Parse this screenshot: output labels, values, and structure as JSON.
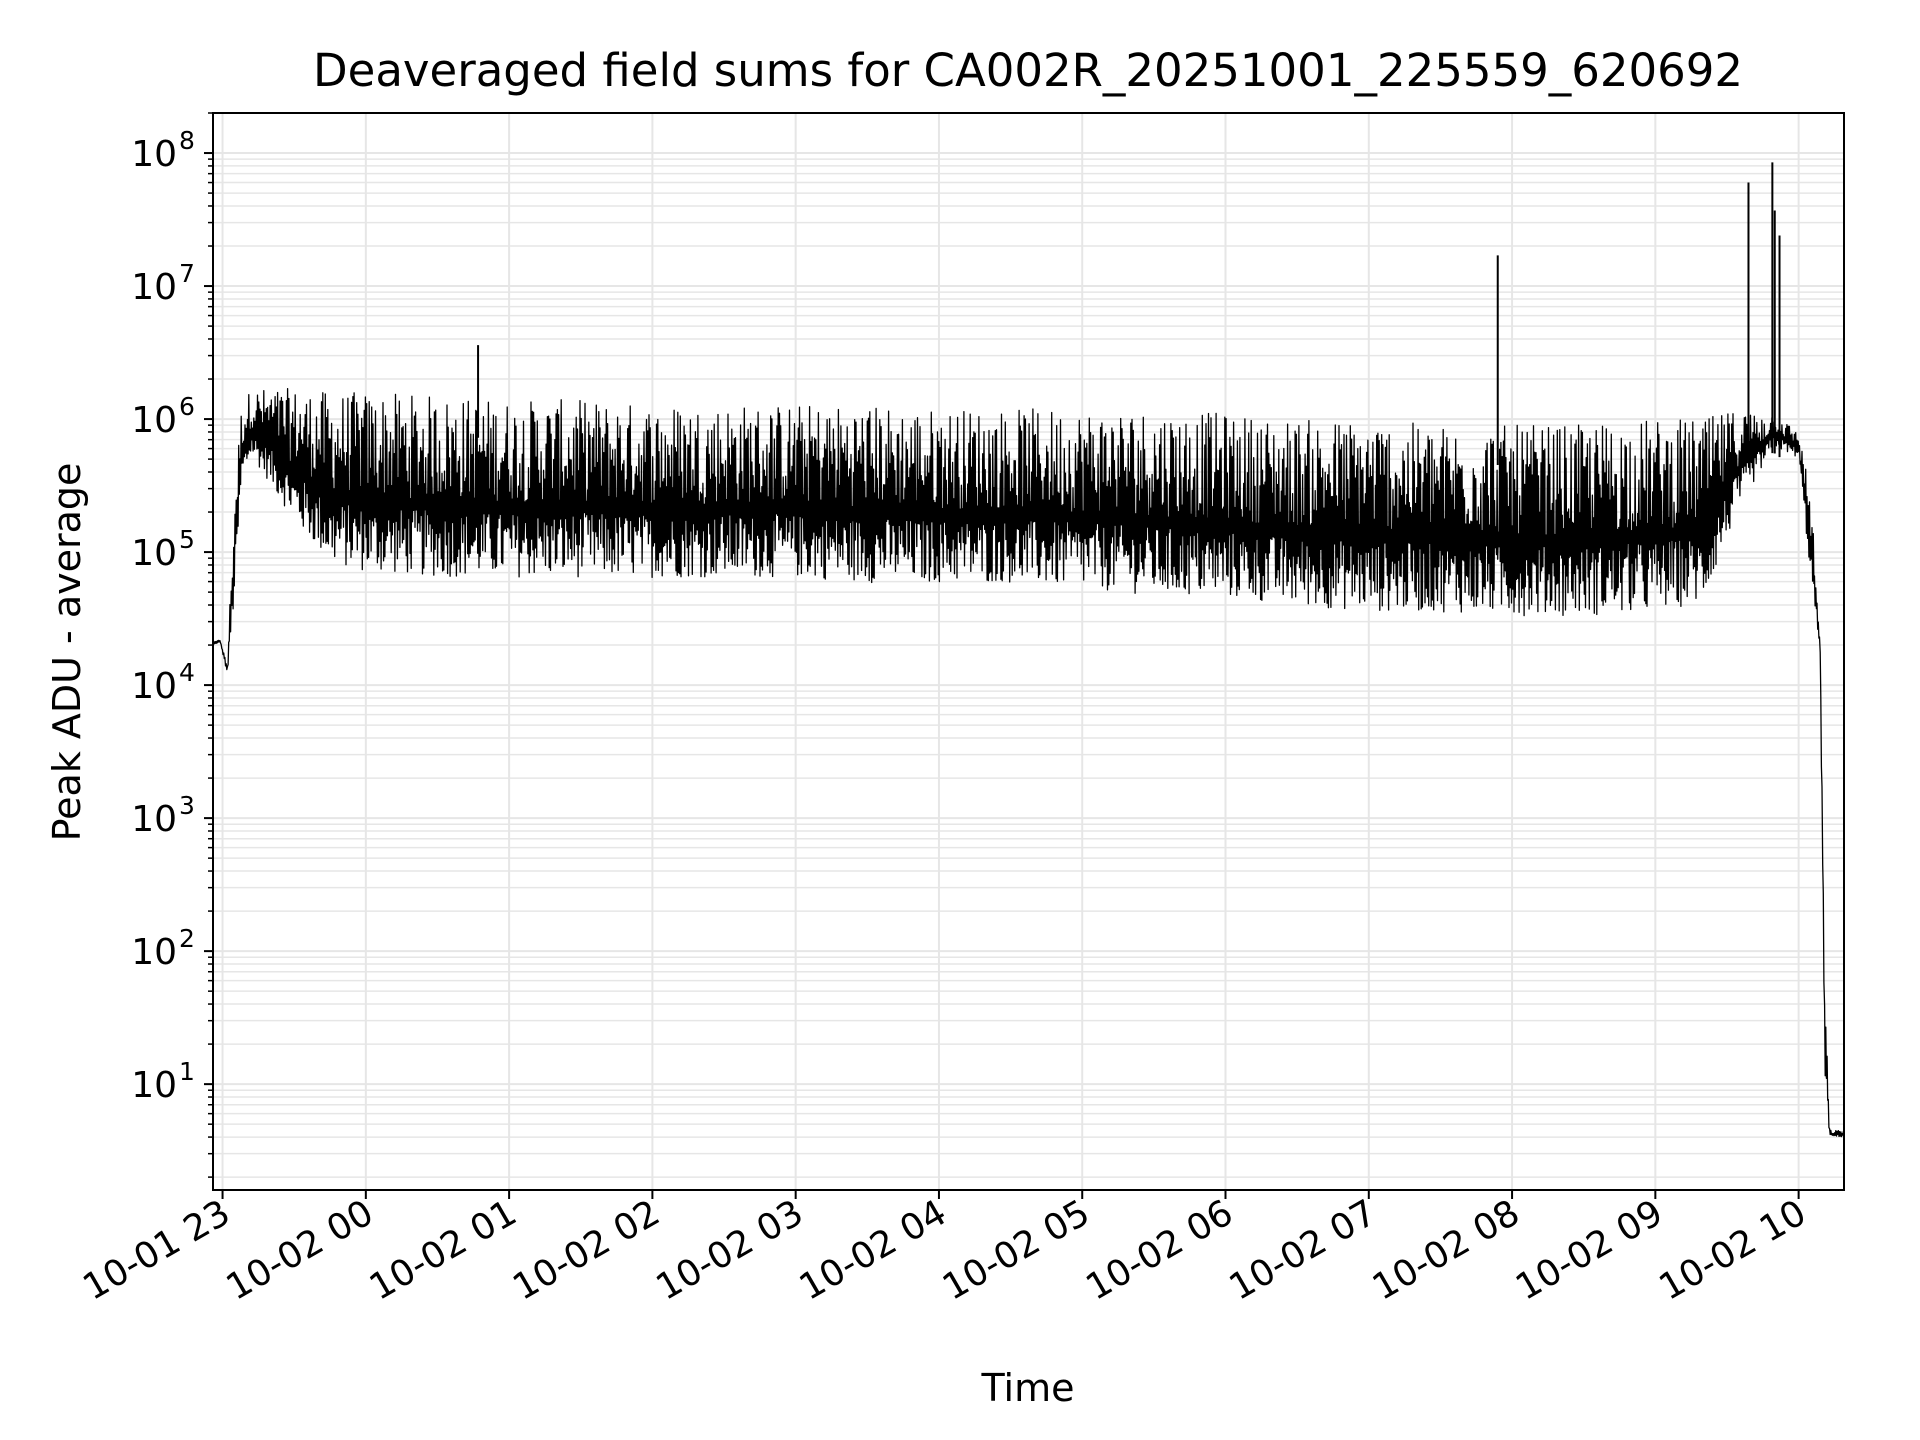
{
  "chart_data": {
    "type": "line",
    "title": "Deaveraged field sums for CA002R_20251001_225559_620692",
    "xlabel": "Time",
    "ylabel": "Peak ADU - average",
    "yscale": "log",
    "ylim": [
      1.6,
      200000000
    ],
    "xlim": [
      "2025-10-01 22:56:00",
      "2025-10-02 10:19:00"
    ],
    "grid": true,
    "line_color": "#000000",
    "grid_color": "#e6e6e6",
    "y_ticks": [
      {
        "value": 10,
        "base": "10",
        "exp": "1"
      },
      {
        "value": 100,
        "base": "10",
        "exp": "2"
      },
      {
        "value": 1000,
        "base": "10",
        "exp": "3"
      },
      {
        "value": 10000,
        "base": "10",
        "exp": "4"
      },
      {
        "value": 100000,
        "base": "10",
        "exp": "5"
      },
      {
        "value": 1000000,
        "base": "10",
        "exp": "6"
      },
      {
        "value": 10000000,
        "base": "10",
        "exp": "7"
      },
      {
        "value": 100000000,
        "base": "10",
        "exp": "8"
      }
    ],
    "x_ticks": [
      {
        "time": "2025-10-01 23:00",
        "label": "10-01 23"
      },
      {
        "time": "2025-10-02 00:00",
        "label": "10-02 00"
      },
      {
        "time": "2025-10-02 01:00",
        "label": "10-02 01"
      },
      {
        "time": "2025-10-02 02:00",
        "label": "10-02 02"
      },
      {
        "time": "2025-10-02 03:00",
        "label": "10-02 03"
      },
      {
        "time": "2025-10-02 04:00",
        "label": "10-02 04"
      },
      {
        "time": "2025-10-02 05:00",
        "label": "10-02 05"
      },
      {
        "time": "2025-10-02 06:00",
        "label": "10-02 06"
      },
      {
        "time": "2025-10-02 07:00",
        "label": "10-02 07"
      },
      {
        "time": "2025-10-02 08:00",
        "label": "10-02 08"
      },
      {
        "time": "2025-10-02 09:00",
        "label": "10-02 09"
      },
      {
        "time": "2025-10-02 10:00",
        "label": "10-02 10"
      }
    ],
    "series": [
      {
        "style": "dense noisy trace; low and high envelope values in data units",
        "x": [
          "2025-10-01 22:56",
          "2025-10-01 22:59",
          "2025-10-01 23:02",
          "2025-10-01 23:05",
          "2025-10-01 23:08",
          "2025-10-01 23:12",
          "2025-10-01 23:20",
          "2025-10-01 23:30",
          "2025-10-01 23:45",
          "2025-10-02 00:00",
          "2025-10-02 00:30",
          "2025-10-02 01:00",
          "2025-10-02 01:30",
          "2025-10-02 02:00",
          "2025-10-02 02:30",
          "2025-10-02 03:00",
          "2025-10-02 03:30",
          "2025-10-02 04:00",
          "2025-10-02 04:30",
          "2025-10-02 05:00",
          "2025-10-02 05:30",
          "2025-10-02 06:00",
          "2025-10-02 06:30",
          "2025-10-02 07:00",
          "2025-10-02 07:30",
          "2025-10-02 08:00",
          "2025-10-02 08:30",
          "2025-10-02 08:45",
          "2025-10-02 09:00",
          "2025-10-02 09:20",
          "2025-10-02 09:35",
          "2025-10-02 09:50",
          "2025-10-02 10:00",
          "2025-10-02 10:05",
          "2025-10-02 10:09",
          "2025-10-02 10:11",
          "2025-10-02 10:13",
          "2025-10-02 10:19"
        ],
        "low": [
          20000,
          21000,
          12000,
          40000,
          300000,
          500000,
          300000,
          150000,
          70000,
          60000,
          55000,
          55000,
          55000,
          55000,
          55000,
          55000,
          50000,
          50000,
          50000,
          45000,
          40000,
          38000,
          33000,
          30000,
          30000,
          28000,
          28000,
          28000,
          30000,
          35000,
          200000,
          600000,
          500000,
          60000,
          18000,
          10,
          4,
          4
        ],
        "high": [
          21000,
          22000,
          14000,
          300000,
          1300000,
          1700000,
          1700000,
          1700000,
          1600000,
          1600000,
          1500000,
          1400000,
          1400000,
          1300000,
          1300000,
          1300000,
          1300000,
          1200000,
          1200000,
          1200000,
          1200000,
          1100000,
          1000000,
          1000000,
          900000,
          900000,
          900000,
          1000000,
          1000000,
          1000000,
          1200000,
          1100000,
          800000,
          300000,
          20000,
          50,
          4.5,
          4.5
        ]
      }
    ],
    "spikes": [
      {
        "x": "2025-10-02 00:47",
        "y": 3600000
      },
      {
        "x": "2025-10-02 07:54",
        "y": 17000000
      },
      {
        "x": "2025-10-02 09:39",
        "y": 60000000
      },
      {
        "x": "2025-10-02 09:49",
        "y": 85000000
      },
      {
        "x": "2025-10-02 09:50",
        "y": 37000000
      },
      {
        "x": "2025-10-02 09:52",
        "y": 24000000
      }
    ]
  }
}
